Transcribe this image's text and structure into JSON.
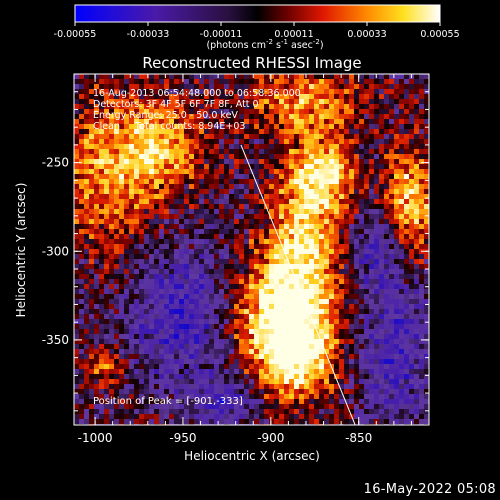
{
  "colorbar": {
    "ticks": [
      "-0.00055",
      "-0.00033",
      "-0.00011",
      "0.00011",
      "0.00033",
      "0.00055"
    ],
    "units_main": "(photons cm",
    "units_sup1": "-2",
    "units_mid": " s",
    "units_sup2": "-1",
    "units_tail": " asec",
    "units_sup3": "-2",
    "units_end": ")",
    "colors": [
      "#0000ff",
      "#3a0a88",
      "#6a30a8",
      "#000000",
      "#8a0000",
      "#ff2a00",
      "#ff9a00",
      "#ffff20",
      "#ffffff"
    ]
  },
  "chart_data": {
    "type": "heatmap",
    "title": "Reconstructed RHESSI Image",
    "xlabel": "Heliocentric X (arcsec)",
    "ylabel": "Heliocentric Y (arcsec)",
    "xlim": [
      -1012,
      -810
    ],
    "ylim": [
      -398,
      -200
    ],
    "xticks": [
      "-1000",
      "-950",
      "-900",
      "-850"
    ],
    "yticks": [
      "-250",
      "-300",
      "-350"
    ],
    "peak": {
      "x": -901,
      "y": -333
    },
    "hot_regions": [
      {
        "x": -895,
        "y": -335,
        "sx": 20,
        "sy": 24,
        "level": 1.0
      },
      {
        "x": -880,
        "y": -290,
        "sx": 14,
        "sy": 30,
        "level": 0.75
      },
      {
        "x": -870,
        "y": -255,
        "sx": 12,
        "sy": 14,
        "level": 0.75
      },
      {
        "x": -990,
        "y": -255,
        "sx": 20,
        "sy": 30,
        "level": 0.65
      },
      {
        "x": -960,
        "y": -240,
        "sx": 16,
        "sy": 16,
        "level": 0.6
      },
      {
        "x": -820,
        "y": -270,
        "sx": 10,
        "sy": 20,
        "level": 0.8
      },
      {
        "x": -880,
        "y": -215,
        "sx": 22,
        "sy": 12,
        "level": 0.6
      },
      {
        "x": -995,
        "y": -365,
        "sx": 8,
        "sy": 8,
        "level": 0.5
      },
      {
        "x": -885,
        "y": -360,
        "sx": 14,
        "sy": 16,
        "level": 0.8
      }
    ],
    "cool_regions": [
      {
        "x": -950,
        "y": -335,
        "sx": 22,
        "sy": 28,
        "level": -0.6
      },
      {
        "x": -830,
        "y": -355,
        "sx": 14,
        "sy": 30,
        "level": -0.55
      },
      {
        "x": -925,
        "y": -385,
        "sx": 14,
        "sy": 10,
        "level": -0.5
      },
      {
        "x": -840,
        "y": -300,
        "sx": 10,
        "sy": 14,
        "level": -0.45
      }
    ],
    "limb_line": {
      "x1": -917,
      "y1": -240,
      "x2": -852,
      "y2": -398
    }
  },
  "plot": {
    "date_range": "16-Aug-2013 06:54:48.000 to 06:58:36.000",
    "detectors": "Detectors: 3F 4F 5F 6F 7F 8F, Att 0",
    "energy": "Energy Range: 25.0 - 50.0 keV",
    "clean": "Clean     Total counts: 8.94E+03",
    "peak_text": "Position of Peak = [-901,-333]"
  },
  "footer": {
    "timestamp": "16-May-2022 05:08"
  }
}
